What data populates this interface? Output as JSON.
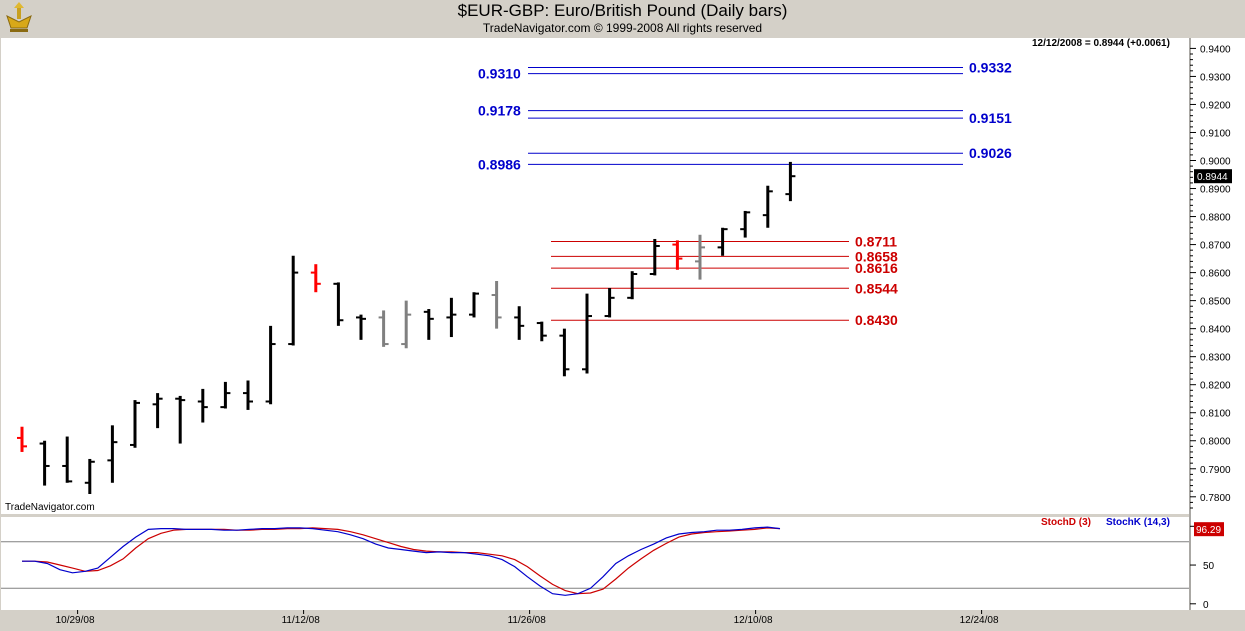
{
  "header": {
    "title": "$EUR-GBP:  Euro/British Pound  (Daily bars)",
    "subtitle": "TradeNavigator.com © 1999-2008 All rights reserved"
  },
  "watermark": "TradeNavigator.com",
  "last_quote": "12/12/2008 = 0.8944 (+0.0061)",
  "colors": {
    "up_bar": "#000000",
    "highlight_bar": "#ff0000",
    "gray_bar": "#808080",
    "blue_level": "#0000cc",
    "red_level": "#cc0000",
    "stoch_d": "#cc0000",
    "stoch_k": "#0000cc",
    "background": "#ffffff",
    "frame": "#d4d0c8"
  },
  "chart_data": [
    {
      "type": "ohlc",
      "title": "$EUR-GBP:  Euro/British Pound  (Daily bars)",
      "ylim": [
        0.776,
        0.943
      ],
      "y_ticks": [
        "0.9400",
        "0.9300",
        "0.9200",
        "0.9100",
        "0.9000",
        "0.8900",
        "0.8800",
        "0.8700",
        "0.8600",
        "0.8500",
        "0.8400",
        "0.8300",
        "0.8200",
        "0.8100",
        "0.8000",
        "0.7900",
        "0.7800"
      ],
      "last_price_label": "0.8944",
      "last_price": 0.8944,
      "x_labels": [
        {
          "label": "10/29/08",
          "index": 1
        },
        {
          "label": "11/12/08",
          "index": 11
        },
        {
          "label": "11/26/08",
          "index": 21
        },
        {
          "label": "12/10/08",
          "index": 31
        },
        {
          "label": "12/24/08",
          "index": 41
        }
      ],
      "bars": [
        {
          "o": 0.801,
          "h": 0.805,
          "l": 0.796,
          "c": 0.798,
          "color": "red"
        },
        {
          "o": 0.799,
          "h": 0.8,
          "l": 0.784,
          "c": 0.791,
          "color": "black"
        },
        {
          "o": 0.791,
          "h": 0.8015,
          "l": 0.785,
          "c": 0.7855,
          "color": "black"
        },
        {
          "o": 0.785,
          "h": 0.7935,
          "l": 0.781,
          "c": 0.7925,
          "color": "black"
        },
        {
          "o": 0.793,
          "h": 0.8055,
          "l": 0.785,
          "c": 0.7995,
          "color": "black"
        },
        {
          "o": 0.7985,
          "h": 0.8145,
          "l": 0.7975,
          "c": 0.8135,
          "color": "black"
        },
        {
          "o": 0.813,
          "h": 0.817,
          "l": 0.8045,
          "c": 0.815,
          "color": "black"
        },
        {
          "o": 0.815,
          "h": 0.816,
          "l": 0.799,
          "c": 0.8145,
          "color": "black"
        },
        {
          "o": 0.814,
          "h": 0.8185,
          "l": 0.8065,
          "c": 0.812,
          "color": "black"
        },
        {
          "o": 0.812,
          "h": 0.821,
          "l": 0.8115,
          "c": 0.817,
          "color": "black"
        },
        {
          "o": 0.817,
          "h": 0.8215,
          "l": 0.811,
          "c": 0.814,
          "color": "black"
        },
        {
          "o": 0.814,
          "h": 0.841,
          "l": 0.813,
          "c": 0.8345,
          "color": "black"
        },
        {
          "o": 0.8345,
          "h": 0.866,
          "l": 0.834,
          "c": 0.86,
          "color": "black"
        },
        {
          "o": 0.86,
          "h": 0.863,
          "l": 0.853,
          "c": 0.856,
          "color": "red"
        },
        {
          "o": 0.856,
          "h": 0.8565,
          "l": 0.841,
          "c": 0.843,
          "color": "black"
        },
        {
          "o": 0.844,
          "h": 0.845,
          "l": 0.836,
          "c": 0.8435,
          "color": "black"
        },
        {
          "o": 0.844,
          "h": 0.8465,
          "l": 0.8335,
          "c": 0.8345,
          "color": "gray"
        },
        {
          "o": 0.8345,
          "h": 0.85,
          "l": 0.833,
          "c": 0.845,
          "color": "gray"
        },
        {
          "o": 0.846,
          "h": 0.847,
          "l": 0.836,
          "c": 0.8435,
          "color": "black"
        },
        {
          "o": 0.844,
          "h": 0.851,
          "l": 0.837,
          "c": 0.845,
          "color": "black"
        },
        {
          "o": 0.845,
          "h": 0.853,
          "l": 0.844,
          "c": 0.8525,
          "color": "black"
        },
        {
          "o": 0.852,
          "h": 0.857,
          "l": 0.84,
          "c": 0.844,
          "color": "gray"
        },
        {
          "o": 0.844,
          "h": 0.848,
          "l": 0.836,
          "c": 0.841,
          "color": "black"
        },
        {
          "o": 0.842,
          "h": 0.8425,
          "l": 0.8355,
          "c": 0.8375,
          "color": "black"
        },
        {
          "o": 0.8375,
          "h": 0.84,
          "l": 0.823,
          "c": 0.8255,
          "color": "black"
        },
        {
          "o": 0.8255,
          "h": 0.8525,
          "l": 0.824,
          "c": 0.8445,
          "color": "black"
        },
        {
          "o": 0.8445,
          "h": 0.8545,
          "l": 0.844,
          "c": 0.851,
          "color": "black"
        },
        {
          "o": 0.851,
          "h": 0.8605,
          "l": 0.8505,
          "c": 0.8595,
          "color": "black"
        },
        {
          "o": 0.8595,
          "h": 0.872,
          "l": 0.859,
          "c": 0.8695,
          "color": "black"
        },
        {
          "o": 0.87,
          "h": 0.8715,
          "l": 0.861,
          "c": 0.865,
          "color": "red"
        },
        {
          "o": 0.864,
          "h": 0.8735,
          "l": 0.8575,
          "c": 0.869,
          "color": "gray"
        },
        {
          "o": 0.869,
          "h": 0.876,
          "l": 0.866,
          "c": 0.8755,
          "color": "black"
        },
        {
          "o": 0.8755,
          "h": 0.882,
          "l": 0.8725,
          "c": 0.8815,
          "color": "black"
        },
        {
          "o": 0.8805,
          "h": 0.891,
          "l": 0.876,
          "c": 0.889,
          "color": "black"
        },
        {
          "o": 0.888,
          "h": 0.8995,
          "l": 0.8855,
          "c": 0.8944,
          "color": "black"
        }
      ],
      "blue_levels": [
        {
          "label": "0.9332",
          "value": 0.9332,
          "side": "right"
        },
        {
          "label": "0.9310",
          "value": 0.931,
          "side": "left"
        },
        {
          "label": "0.9178",
          "value": 0.9178,
          "side": "left"
        },
        {
          "label": "0.9151",
          "value": 0.9151,
          "side": "right"
        },
        {
          "label": "0.9026",
          "value": 0.9026,
          "side": "right"
        },
        {
          "label": "0.8986",
          "value": 0.8986,
          "side": "left"
        }
      ],
      "red_levels": [
        {
          "label": "0.8711",
          "value": 0.8711
        },
        {
          "label": "0.8658",
          "value": 0.8658
        },
        {
          "label": "0.8616",
          "value": 0.8616
        },
        {
          "label": "0.8544",
          "value": 0.8544
        },
        {
          "label": "0.8430",
          "value": 0.843
        }
      ]
    },
    {
      "type": "line",
      "indicator": "Stochastic",
      "ylim": [
        -8,
        112
      ],
      "y_ticks": [
        "0",
        "50",
        "100"
      ],
      "guide_lines": [
        20,
        80
      ],
      "last_value_label": "96.29",
      "last_value": 96.29,
      "series": [
        {
          "name": "StochK (14,3)",
          "color": "blue",
          "values": [
            55,
            55,
            52,
            44,
            40,
            42,
            46,
            60,
            74,
            86,
            96,
            97,
            97,
            96,
            96,
            96,
            95,
            95,
            96,
            97,
            97,
            98,
            98,
            97,
            95,
            93,
            89,
            84,
            77,
            72,
            70,
            68,
            66,
            67,
            66,
            66,
            64,
            62,
            57,
            48,
            35,
            23,
            13,
            11,
            13,
            20,
            35,
            52,
            62,
            70,
            77,
            85,
            90,
            92,
            93,
            95,
            95,
            96,
            98,
            99,
            97
          ]
        },
        {
          "name": "StochD (3)",
          "color": "red",
          "values": [
            55,
            55,
            54,
            50,
            46,
            42,
            43,
            49,
            58,
            72,
            84,
            91,
            95,
            96,
            96,
            96,
            96,
            95,
            95,
            96,
            96,
            97,
            97,
            98,
            97,
            96,
            93,
            89,
            84,
            79,
            74,
            70,
            68,
            67,
            67,
            66,
            66,
            64,
            62,
            57,
            48,
            36,
            25,
            17,
            13,
            14,
            19,
            32,
            46,
            58,
            69,
            78,
            86,
            90,
            92,
            93,
            94,
            95,
            96,
            98,
            97
          ]
        }
      ]
    }
  ]
}
